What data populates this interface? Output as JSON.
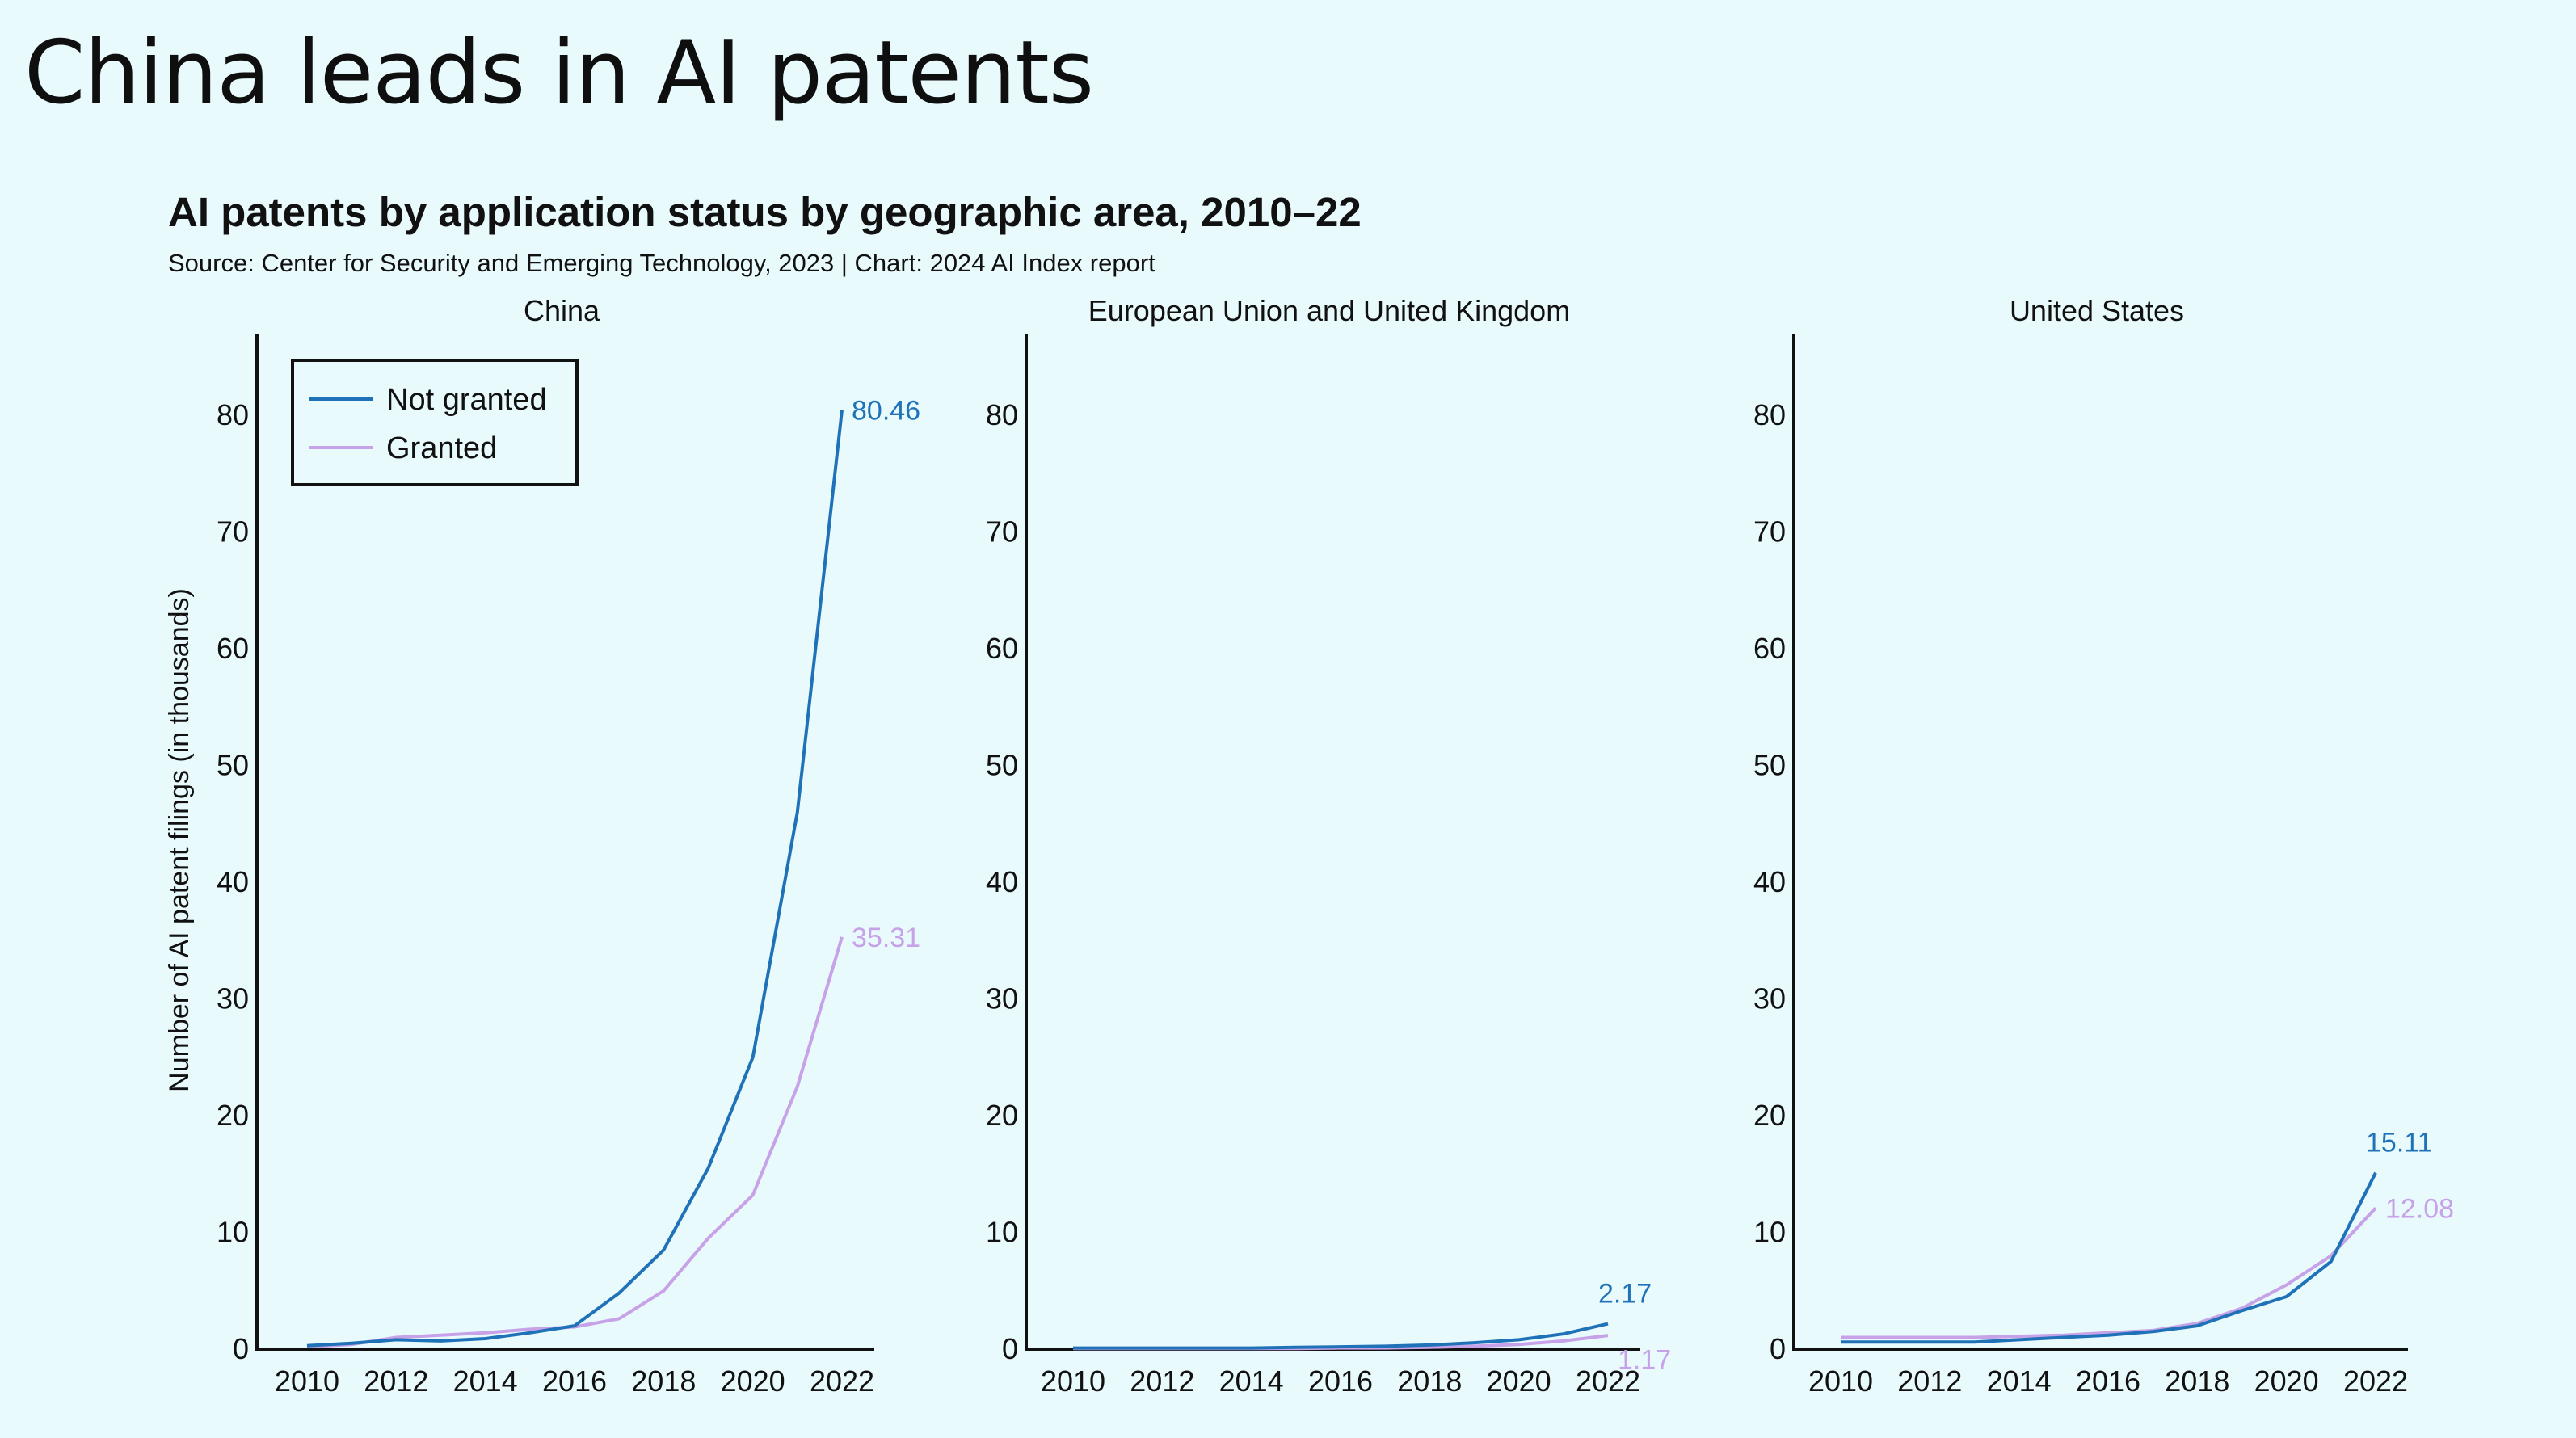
{
  "slide_title": "China leads in AI patents",
  "chart_title": "AI patents by application status by geographic area, 2010–22",
  "chart_source": "Source: Center for Security and Emerging Technology, 2023 | Chart: 2024 AI Index report",
  "colors": {
    "background": "#e9fafd",
    "not_granted": "#1f72b8",
    "granted": "#c7a2e8",
    "text": "#111111"
  },
  "chart_data": {
    "type": "line",
    "ylabel": "Number of AI patent filings (in thousands)",
    "ylim": [
      0,
      85
    ],
    "y_ticks": [
      "0",
      "10",
      "20",
      "30",
      "40",
      "50",
      "60",
      "70",
      "80"
    ],
    "x_ticks": [
      "2010",
      "2012",
      "2014",
      "2016",
      "2018",
      "2020",
      "2022"
    ],
    "legend": {
      "placement": "top-left (China panel)",
      "entries": [
        "Not granted",
        "Granted"
      ]
    },
    "grid": false,
    "panels": [
      {
        "title": "China",
        "x": [
          2010,
          2011,
          2012,
          2013,
          2014,
          2015,
          2016,
          2017,
          2018,
          2019,
          2020,
          2021,
          2022
        ],
        "series": [
          {
            "name": "Not granted",
            "values": [
              0.3,
              0.5,
              0.8,
              0.7,
              0.9,
              1.4,
              2.0,
              4.8,
              8.5,
              15.5,
              25.0,
              46.0,
              80.46
            ],
            "end_label": "80.46"
          },
          {
            "name": "Granted",
            "values": [
              0.2,
              0.4,
              1.0,
              1.2,
              1.4,
              1.7,
              1.9,
              2.6,
              5.0,
              9.5,
              13.2,
              22.5,
              35.31
            ],
            "end_label": "35.31"
          }
        ]
      },
      {
        "title": "European Union and United Kingdom",
        "x": [
          2010,
          2011,
          2012,
          2013,
          2014,
          2015,
          2016,
          2017,
          2018,
          2019,
          2020,
          2021,
          2022
        ],
        "series": [
          {
            "name": "Not granted",
            "values": [
              0.1,
              0.1,
              0.1,
              0.1,
              0.1,
              0.15,
              0.2,
              0.25,
              0.35,
              0.55,
              0.8,
              1.3,
              2.17
            ],
            "end_label": "2.17"
          },
          {
            "name": "Granted",
            "values": [
              0.05,
              0.05,
              0.05,
              0.05,
              0.05,
              0.05,
              0.1,
              0.1,
              0.15,
              0.25,
              0.4,
              0.7,
              1.17
            ],
            "end_label": "1.17"
          }
        ]
      },
      {
        "title": "United States",
        "x": [
          2010,
          2011,
          2012,
          2013,
          2014,
          2015,
          2016,
          2017,
          2018,
          2019,
          2020,
          2021,
          2022
        ],
        "series": [
          {
            "name": "Not granted",
            "values": [
              0.6,
              0.6,
              0.6,
              0.6,
              0.8,
              1.0,
              1.2,
              1.5,
              2.0,
              3.3,
              4.5,
              7.5,
              15.11
            ],
            "end_label": "15.11"
          },
          {
            "name": "Granted",
            "values": [
              1.0,
              1.0,
              1.0,
              1.0,
              1.1,
              1.2,
              1.4,
              1.6,
              2.2,
              3.5,
              5.5,
              8.0,
              12.08
            ],
            "end_label": "12.08"
          }
        ]
      }
    ]
  }
}
